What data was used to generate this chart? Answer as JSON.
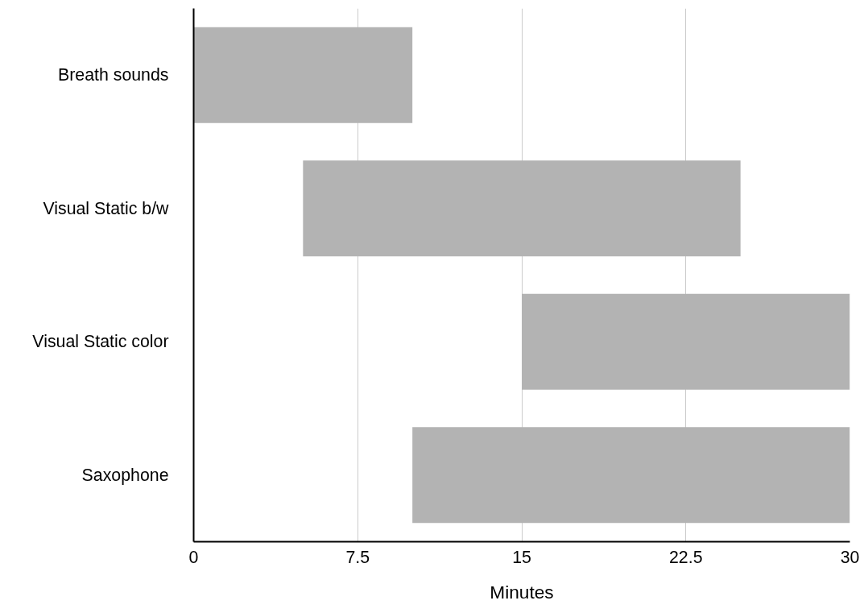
{
  "chart_data": {
    "type": "bar",
    "orientation": "horizontal",
    "categories": [
      "Breath sounds",
      "Visual Static b/w",
      "Visual Static color",
      "Saxophone"
    ],
    "base": [
      0,
      5,
      15,
      10
    ],
    "values": [
      10,
      20,
      15,
      20
    ],
    "color": "#b3b3b3",
    "xlabel": "Minutes",
    "xlim": [
      0,
      30
    ],
    "xticks": [
      0,
      7.5,
      15,
      22.5,
      30
    ],
    "grid": "x"
  }
}
